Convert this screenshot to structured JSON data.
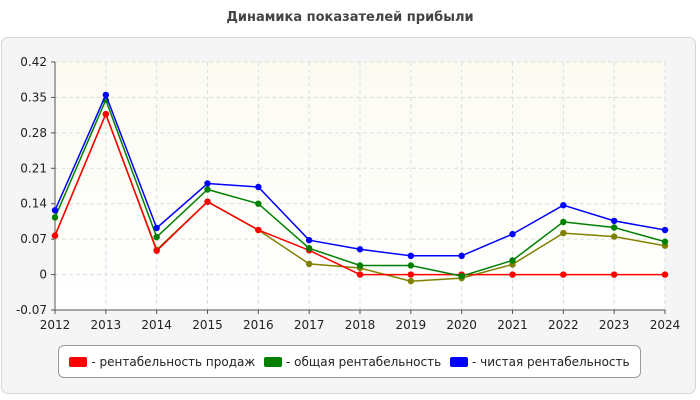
{
  "chart_data": {
    "type": "line",
    "title": "Динамика показателей прибыли",
    "xlabel": "",
    "ylabel": "",
    "x": [
      "2012",
      "2013",
      "2014",
      "2015",
      "2016",
      "2017",
      "2018",
      "2019",
      "2020",
      "2021",
      "2022",
      "2023",
      "2024"
    ],
    "ylim": [
      -0.07,
      0.42
    ],
    "yticks": [
      "0.42",
      "0.35",
      "0.28",
      "0.21",
      "0.14",
      "0.07",
      "0",
      "-0.07"
    ],
    "ytick_values": [
      0.42,
      0.35,
      0.28,
      0.21,
      0.14,
      0.07,
      0,
      -0.07
    ],
    "grid": true,
    "legend_position": "bottom",
    "series": [
      {
        "name": "рентабельность продаж",
        "color": "#ff0000",
        "values": [
          0.077,
          0.317,
          0.047,
          0.144,
          0.088,
          0.048,
          0.0,
          0.0,
          0.0,
          0.0,
          0.0,
          0.0,
          0.0
        ]
      },
      {
        "name": "общая рентабельность",
        "color": "#008000",
        "values": [
          0.113,
          0.345,
          0.074,
          0.168,
          0.14,
          0.052,
          0.018,
          0.018,
          -0.003,
          0.028,
          0.104,
          0.093,
          0.065
        ]
      },
      {
        "name": "чистая рентабельность",
        "color": "#0000ff",
        "values": [
          0.127,
          0.355,
          0.092,
          0.18,
          0.173,
          0.068,
          0.05,
          0.037,
          0.037,
          0.08,
          0.137,
          0.106,
          0.088
        ]
      },
      {
        "name": "",
        "color": "#808000",
        "legend": false,
        "values": [
          0.077,
          0.317,
          0.049,
          0.144,
          0.088,
          0.021,
          0.013,
          -0.013,
          -0.007,
          0.02,
          0.082,
          0.075,
          0.057
        ]
      }
    ]
  }
}
